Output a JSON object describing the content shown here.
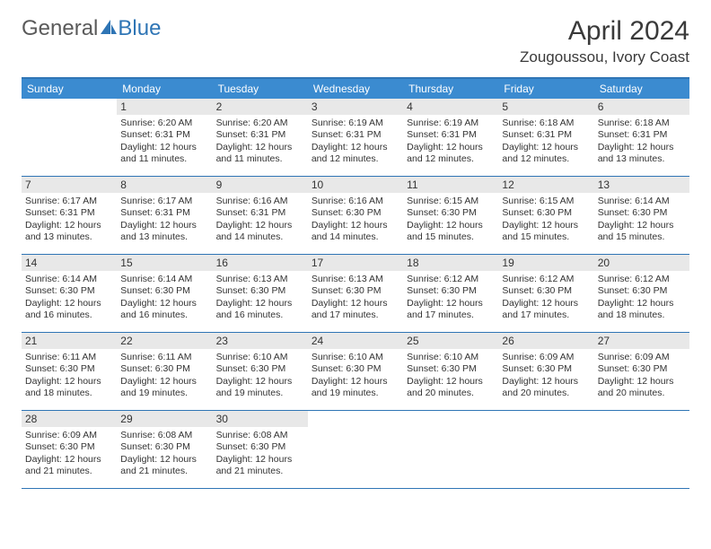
{
  "logo": {
    "text1": "General",
    "text2": "Blue"
  },
  "title": "April 2024",
  "location": "Zougoussou, Ivory Coast",
  "colors": {
    "header_bg": "#3b8bd0",
    "border": "#2f75b5",
    "daynum_bg": "#e8e8e8",
    "text": "#333333",
    "page_bg": "#ffffff"
  },
  "dow": [
    "Sunday",
    "Monday",
    "Tuesday",
    "Wednesday",
    "Thursday",
    "Friday",
    "Saturday"
  ],
  "grid_columns": 7,
  "weeks": [
    [
      null,
      {
        "n": "1",
        "sunrise": "6:20 AM",
        "sunset": "6:31 PM",
        "day": "12 hours and 11 minutes."
      },
      {
        "n": "2",
        "sunrise": "6:20 AM",
        "sunset": "6:31 PM",
        "day": "12 hours and 11 minutes."
      },
      {
        "n": "3",
        "sunrise": "6:19 AM",
        "sunset": "6:31 PM",
        "day": "12 hours and 12 minutes."
      },
      {
        "n": "4",
        "sunrise": "6:19 AM",
        "sunset": "6:31 PM",
        "day": "12 hours and 12 minutes."
      },
      {
        "n": "5",
        "sunrise": "6:18 AM",
        "sunset": "6:31 PM",
        "day": "12 hours and 12 minutes."
      },
      {
        "n": "6",
        "sunrise": "6:18 AM",
        "sunset": "6:31 PM",
        "day": "12 hours and 13 minutes."
      }
    ],
    [
      {
        "n": "7",
        "sunrise": "6:17 AM",
        "sunset": "6:31 PM",
        "day": "12 hours and 13 minutes."
      },
      {
        "n": "8",
        "sunrise": "6:17 AM",
        "sunset": "6:31 PM",
        "day": "12 hours and 13 minutes."
      },
      {
        "n": "9",
        "sunrise": "6:16 AM",
        "sunset": "6:31 PM",
        "day": "12 hours and 14 minutes."
      },
      {
        "n": "10",
        "sunrise": "6:16 AM",
        "sunset": "6:30 PM",
        "day": "12 hours and 14 minutes."
      },
      {
        "n": "11",
        "sunrise": "6:15 AM",
        "sunset": "6:30 PM",
        "day": "12 hours and 15 minutes."
      },
      {
        "n": "12",
        "sunrise": "6:15 AM",
        "sunset": "6:30 PM",
        "day": "12 hours and 15 minutes."
      },
      {
        "n": "13",
        "sunrise": "6:14 AM",
        "sunset": "6:30 PM",
        "day": "12 hours and 15 minutes."
      }
    ],
    [
      {
        "n": "14",
        "sunrise": "6:14 AM",
        "sunset": "6:30 PM",
        "day": "12 hours and 16 minutes."
      },
      {
        "n": "15",
        "sunrise": "6:14 AM",
        "sunset": "6:30 PM",
        "day": "12 hours and 16 minutes."
      },
      {
        "n": "16",
        "sunrise": "6:13 AM",
        "sunset": "6:30 PM",
        "day": "12 hours and 16 minutes."
      },
      {
        "n": "17",
        "sunrise": "6:13 AM",
        "sunset": "6:30 PM",
        "day": "12 hours and 17 minutes."
      },
      {
        "n": "18",
        "sunrise": "6:12 AM",
        "sunset": "6:30 PM",
        "day": "12 hours and 17 minutes."
      },
      {
        "n": "19",
        "sunrise": "6:12 AM",
        "sunset": "6:30 PM",
        "day": "12 hours and 17 minutes."
      },
      {
        "n": "20",
        "sunrise": "6:12 AM",
        "sunset": "6:30 PM",
        "day": "12 hours and 18 minutes."
      }
    ],
    [
      {
        "n": "21",
        "sunrise": "6:11 AM",
        "sunset": "6:30 PM",
        "day": "12 hours and 18 minutes."
      },
      {
        "n": "22",
        "sunrise": "6:11 AM",
        "sunset": "6:30 PM",
        "day": "12 hours and 19 minutes."
      },
      {
        "n": "23",
        "sunrise": "6:10 AM",
        "sunset": "6:30 PM",
        "day": "12 hours and 19 minutes."
      },
      {
        "n": "24",
        "sunrise": "6:10 AM",
        "sunset": "6:30 PM",
        "day": "12 hours and 19 minutes."
      },
      {
        "n": "25",
        "sunrise": "6:10 AM",
        "sunset": "6:30 PM",
        "day": "12 hours and 20 minutes."
      },
      {
        "n": "26",
        "sunrise": "6:09 AM",
        "sunset": "6:30 PM",
        "day": "12 hours and 20 minutes."
      },
      {
        "n": "27",
        "sunrise": "6:09 AM",
        "sunset": "6:30 PM",
        "day": "12 hours and 20 minutes."
      }
    ],
    [
      {
        "n": "28",
        "sunrise": "6:09 AM",
        "sunset": "6:30 PM",
        "day": "12 hours and 21 minutes."
      },
      {
        "n": "29",
        "sunrise": "6:08 AM",
        "sunset": "6:30 PM",
        "day": "12 hours and 21 minutes."
      },
      {
        "n": "30",
        "sunrise": "6:08 AM",
        "sunset": "6:30 PM",
        "day": "12 hours and 21 minutes."
      },
      null,
      null,
      null,
      null
    ]
  ],
  "labels": {
    "sunrise": "Sunrise:",
    "sunset": "Sunset:",
    "daylight": "Daylight:"
  }
}
